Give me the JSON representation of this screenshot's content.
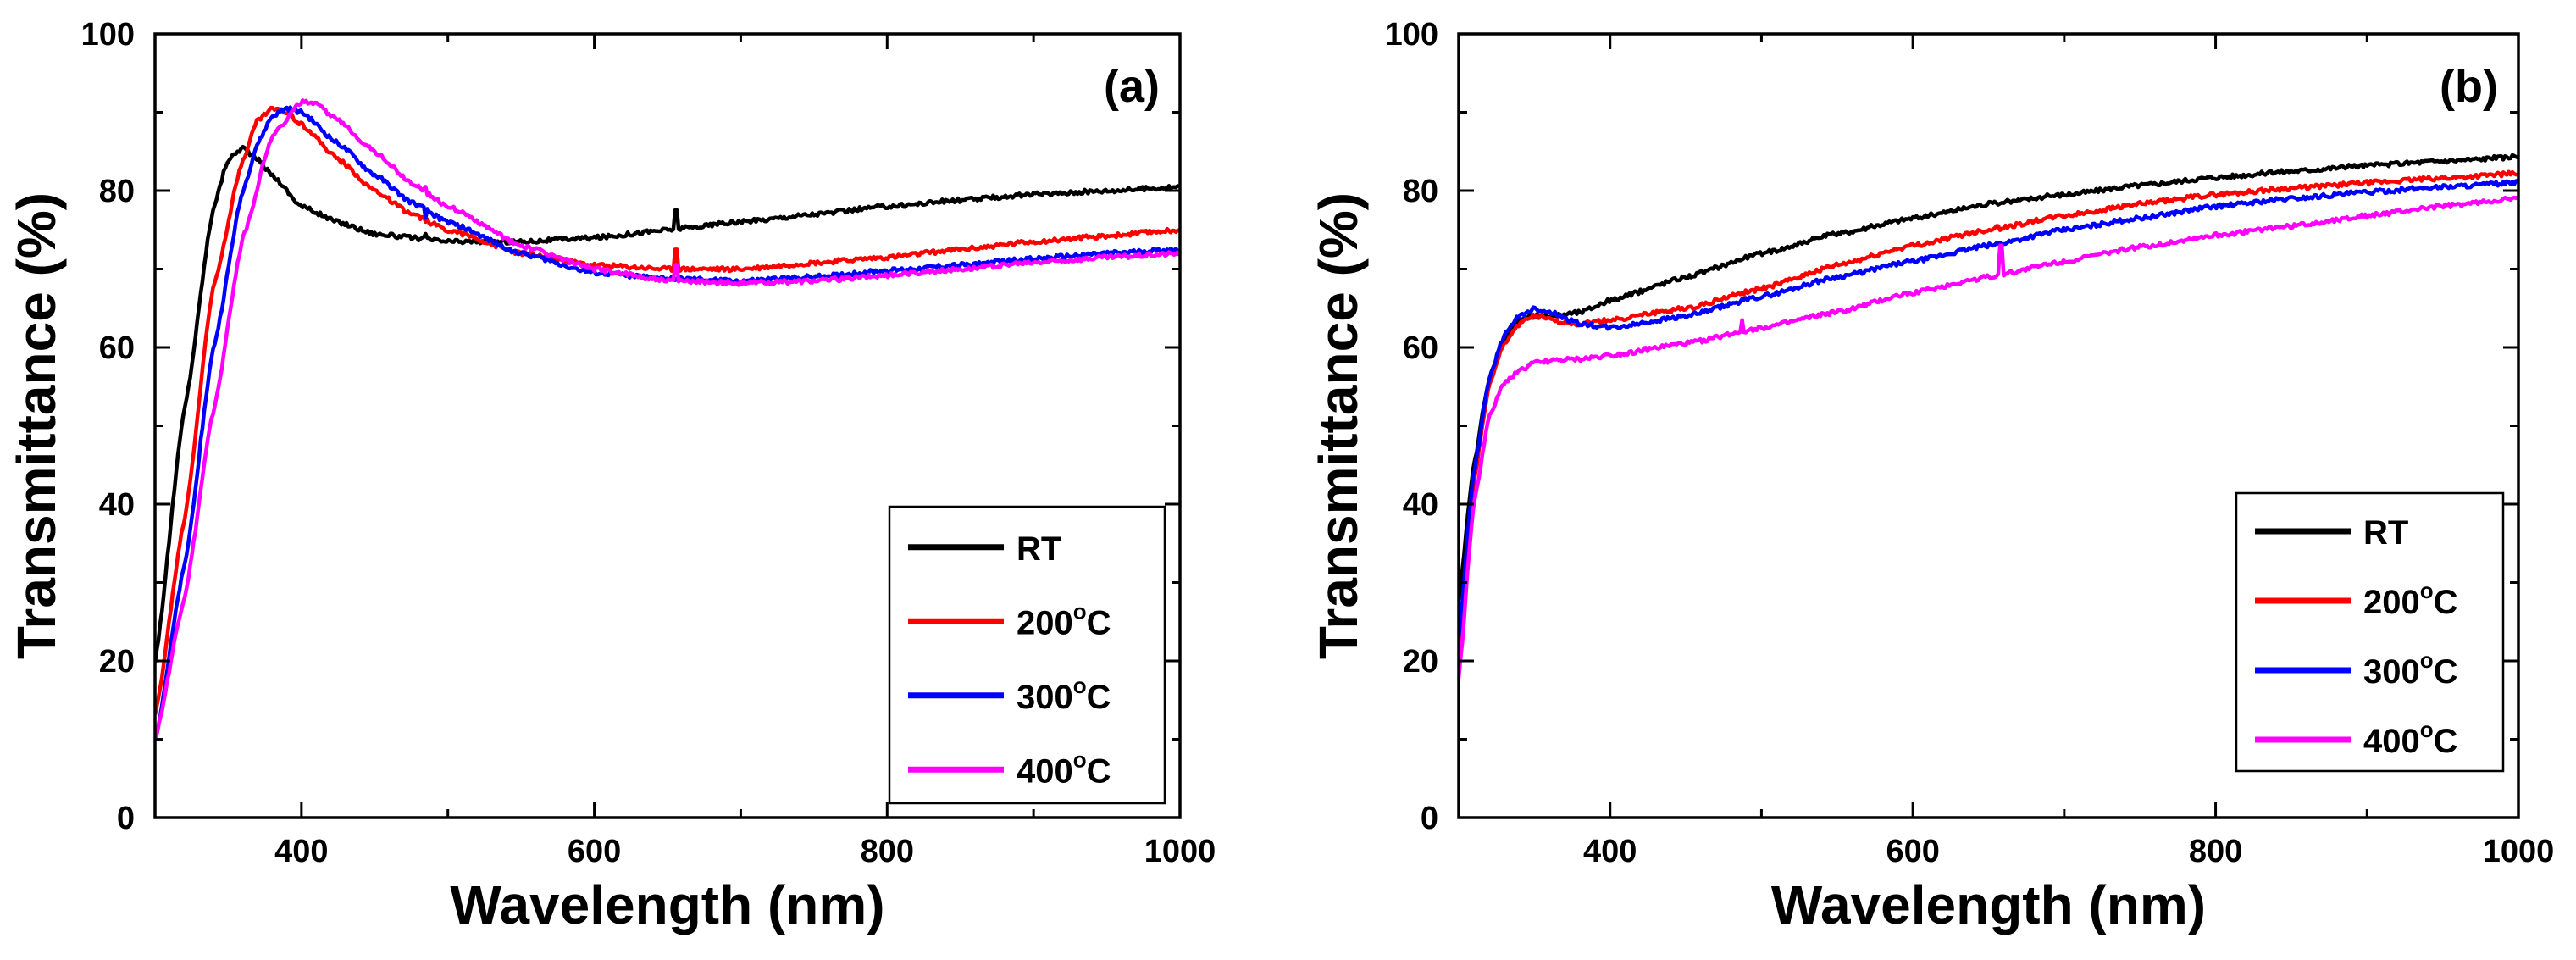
{
  "chart_data": [
    {
      "type": "line",
      "panel_label": "(a)",
      "xlabel": "Wavelength (nm)",
      "ylabel": "Transmittance (%)",
      "xlim": [
        300,
        1000
      ],
      "ylim": [
        0,
        100
      ],
      "xticks": [
        400,
        600,
        800,
        1000
      ],
      "yticks": [
        0,
        20,
        40,
        60,
        80,
        100
      ],
      "grid": false,
      "legend_position": "bottom-right",
      "series": [
        {
          "name": "RT",
          "suffix": "",
          "color": "#000000",
          "x": [
            300,
            320,
            340,
            350,
            360,
            370,
            380,
            400,
            425,
            450,
            475,
            500,
            550,
            600,
            650,
            700,
            750,
            800,
            850,
            900,
            950,
            1000
          ],
          "y": [
            20,
            52,
            78,
            84,
            85.5,
            84,
            82,
            78,
            76,
            74.5,
            74,
            73.5,
            73.5,
            74,
            75,
            76,
            77,
            78,
            78.8,
            79.5,
            80,
            80.5
          ],
          "spikes": [
            {
              "x": 485,
              "y": 74.5
            },
            {
              "x": 656,
              "y": 77.5
            }
          ]
        },
        {
          "name": "200",
          "suffix": "oC",
          "color": "#ff0000",
          "x": [
            300,
            320,
            340,
            360,
            370,
            380,
            390,
            400,
            425,
            450,
            475,
            500,
            550,
            600,
            650,
            700,
            750,
            800,
            850,
            900,
            950,
            1000
          ],
          "y": [
            13,
            38,
            68,
            84,
            89,
            90.5,
            90,
            88.5,
            84,
            80,
            77,
            75,
            72,
            70.5,
            70,
            70,
            70.8,
            71.5,
            72.5,
            73.5,
            74.2,
            75
          ],
          "spikes": [
            {
              "x": 656,
              "y": 72.5
            }
          ]
        },
        {
          "name": "300",
          "suffix": "oC",
          "color": "#0000ff",
          "x": [
            300,
            320,
            340,
            360,
            370,
            380,
            390,
            400,
            425,
            450,
            475,
            500,
            550,
            600,
            650,
            700,
            750,
            800,
            850,
            900,
            950,
            1000
          ],
          "y": [
            10,
            32,
            60,
            80,
            86,
            89.5,
            90.5,
            90,
            86,
            82,
            78.5,
            76,
            72,
            69.5,
            68.8,
            68.5,
            69,
            69.8,
            70.5,
            71.3,
            72,
            72.5
          ],
          "spikes": [
            {
              "x": 485,
              "y": 76.5
            }
          ]
        },
        {
          "name": "400",
          "suffix": "oC",
          "color": "#ff00ff",
          "x": [
            300,
            320,
            340,
            360,
            380,
            400,
            410,
            425,
            450,
            475,
            500,
            550,
            600,
            650,
            700,
            750,
            800,
            850,
            900,
            950,
            1000
          ],
          "y": [
            10,
            28,
            52,
            74,
            87,
            91.3,
            91,
            89,
            85,
            81,
            78,
            73,
            70,
            68.5,
            68.2,
            68.5,
            69.2,
            70,
            70.8,
            71.5,
            72
          ],
          "spikes": [
            {
              "x": 485,
              "y": 80.5
            },
            {
              "x": 656,
              "y": 70.5
            }
          ]
        }
      ]
    },
    {
      "type": "line",
      "panel_label": "(b)",
      "xlabel": "Wavelength (nm)",
      "ylabel": "Transmittance (%)",
      "xlim": [
        300,
        1000
      ],
      "ylim": [
        0,
        100
      ],
      "xticks": [
        400,
        600,
        800,
        1000
      ],
      "yticks": [
        0,
        20,
        40,
        60,
        80,
        100
      ],
      "grid": false,
      "legend_position": "bottom-right",
      "series": [
        {
          "name": "RT",
          "suffix": "",
          "color": "#000000",
          "x": [
            300,
            310,
            320,
            330,
            340,
            350,
            360,
            380,
            400,
            450,
            500,
            550,
            600,
            650,
            700,
            750,
            800,
            850,
            900,
            950,
            1000
          ],
          "y": [
            28,
            45,
            56,
            61,
            63.5,
            64,
            64,
            64.5,
            66,
            69,
            72,
            74.5,
            76.5,
            78.3,
            79.5,
            80.7,
            81.7,
            82.5,
            83.2,
            83.8,
            84.3
          ],
          "spikes": []
        },
        {
          "name": "200",
          "suffix": "oC",
          "color": "#ff0000",
          "x": [
            300,
            310,
            320,
            330,
            340,
            350,
            360,
            380,
            400,
            450,
            500,
            550,
            600,
            650,
            700,
            750,
            800,
            850,
            900,
            950,
            1000
          ],
          "y": [
            22,
            43,
            55,
            60.5,
            63,
            64,
            63.5,
            63,
            63.5,
            65,
            67.5,
            70.5,
            73,
            75,
            76.8,
            78.3,
            79.5,
            80.3,
            81,
            81.6,
            82.2
          ],
          "spikes": [
            {
              "x": 656,
              "y": 75.5
            }
          ]
        },
        {
          "name": "300",
          "suffix": "oC",
          "color": "#0000ff",
          "x": [
            300,
            310,
            320,
            330,
            340,
            350,
            360,
            380,
            400,
            450,
            500,
            550,
            600,
            650,
            700,
            750,
            800,
            850,
            900,
            950,
            1000
          ],
          "y": [
            23,
            44,
            56,
            61.5,
            64,
            65,
            64.5,
            63,
            62.5,
            64,
            66.5,
            69,
            71,
            73,
            75,
            76.5,
            78,
            79,
            79.8,
            80.5,
            81
          ],
          "spikes": []
        },
        {
          "name": "400",
          "suffix": "oC",
          "color": "#ff00ff",
          "x": [
            300,
            310,
            320,
            330,
            340,
            350,
            360,
            380,
            400,
            450,
            500,
            550,
            600,
            650,
            700,
            750,
            800,
            850,
            900,
            950,
            1000
          ],
          "y": [
            18,
            40,
            51,
            55.5,
            57,
            58,
            58.3,
            58.5,
            59,
            60.5,
            62.5,
            64.5,
            67,
            69,
            71,
            72.8,
            74.3,
            75.5,
            76.8,
            78,
            79
          ],
          "spikes": [
            {
              "x": 487,
              "y": 63.5
            },
            {
              "x": 658,
              "y": 73
            }
          ]
        }
      ]
    }
  ]
}
